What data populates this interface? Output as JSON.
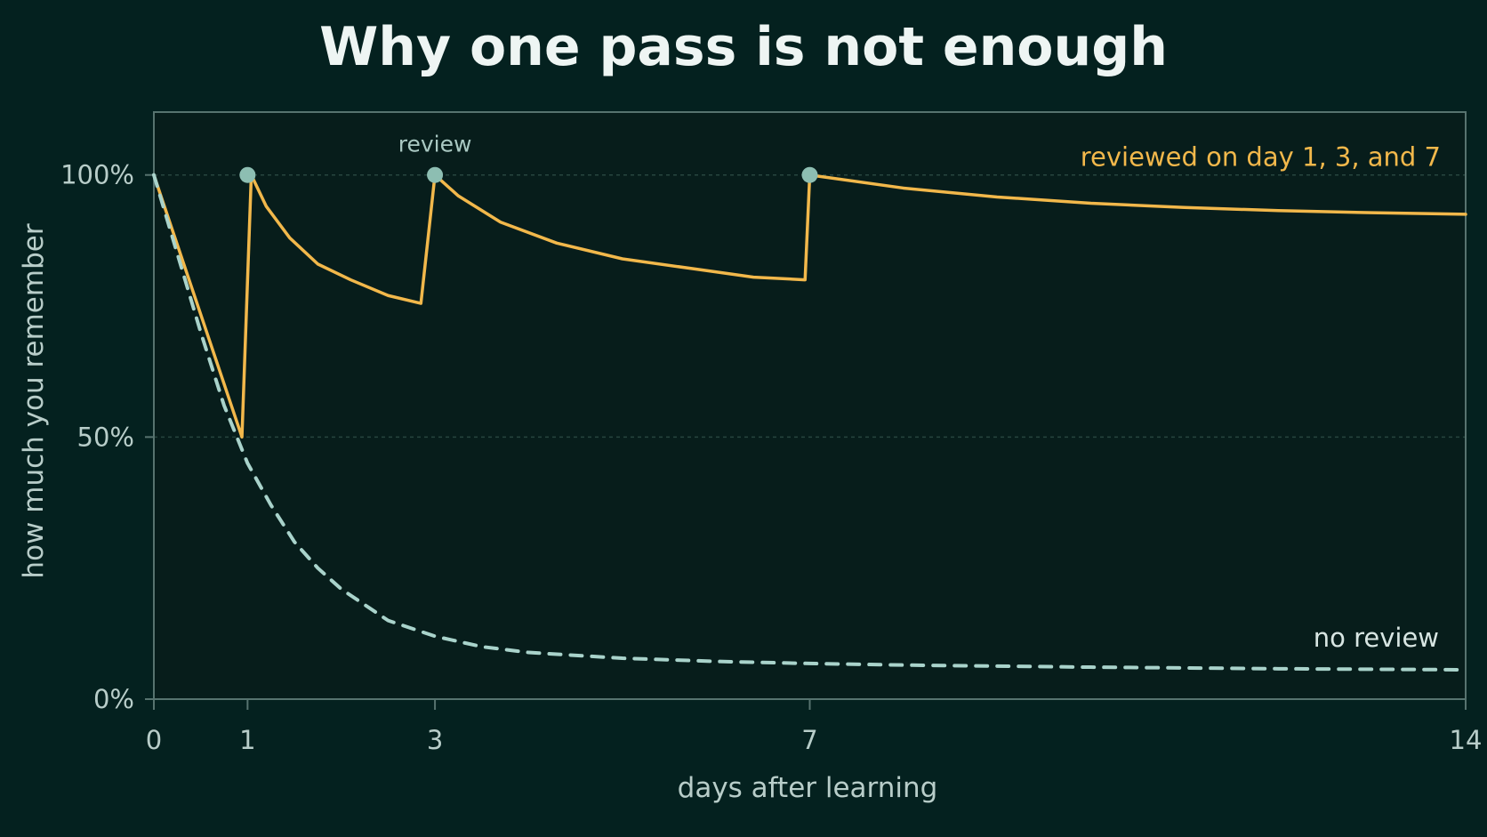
{
  "chart_data": {
    "type": "line",
    "title": "Why one pass is not enough",
    "xlabel": "days after learning",
    "ylabel": "how much you remember",
    "xlim": [
      0,
      14
    ],
    "ylim": [
      0,
      100
    ],
    "x_ticks": [
      0,
      1,
      3,
      7,
      14
    ],
    "x_tick_labels": [
      "0",
      "1",
      "3",
      "7",
      "14"
    ],
    "y_ticks": [
      0,
      50,
      100
    ],
    "y_tick_labels": [
      "0%",
      "50%",
      "100%"
    ],
    "grid": true,
    "colors": {
      "background": "#04211f",
      "plot_background": "#071d1b",
      "axis": "#57736f",
      "grid": "#27453f",
      "reviewed": "#f2b84b",
      "no_review": "#a9d3cb",
      "marker": "#8dbeb2"
    },
    "series": [
      {
        "name": "reviewed on day 1, 3, and 7",
        "style": "solid",
        "x": [
          0,
          0.94,
          1.04,
          1.2,
          1.45,
          1.75,
          2.1,
          2.5,
          2.85,
          3.0,
          3.25,
          3.7,
          4.3,
          5.0,
          5.8,
          6.4,
          6.95,
          7.0,
          8.0,
          9.0,
          10.0,
          11.0,
          12.0,
          13.0,
          14.0
        ],
        "y": [
          100,
          50,
          100,
          94,
          88,
          83,
          80,
          77,
          75.5,
          100,
          96,
          91,
          87,
          84,
          82,
          80.5,
          80,
          100,
          97.5,
          95.8,
          94.6,
          93.8,
          93.2,
          92.8,
          92.5
        ]
      },
      {
        "name": "no review",
        "style": "dashed",
        "x": [
          0,
          0.25,
          0.5,
          0.75,
          1.0,
          1.25,
          1.5,
          1.75,
          2.0,
          2.5,
          3.0,
          3.5,
          4.0,
          5.0,
          6.0,
          7.0,
          8.0,
          10.0,
          12.0,
          14.0
        ],
        "y": [
          100,
          85,
          70,
          56,
          45,
          37,
          30,
          25,
          21,
          15,
          12,
          10,
          8.9,
          7.8,
          7.2,
          6.8,
          6.5,
          6.1,
          5.8,
          5.6
        ]
      }
    ],
    "annotations": [
      {
        "text": "review",
        "x": 3,
        "y": 100
      }
    ],
    "review_points": [
      {
        "x": 1,
        "y": 100
      },
      {
        "x": 3,
        "y": 100
      },
      {
        "x": 7,
        "y": 100
      }
    ],
    "series_labels": {
      "reviewed": "reviewed on day 1, 3, and 7",
      "no_review": "no review"
    }
  }
}
